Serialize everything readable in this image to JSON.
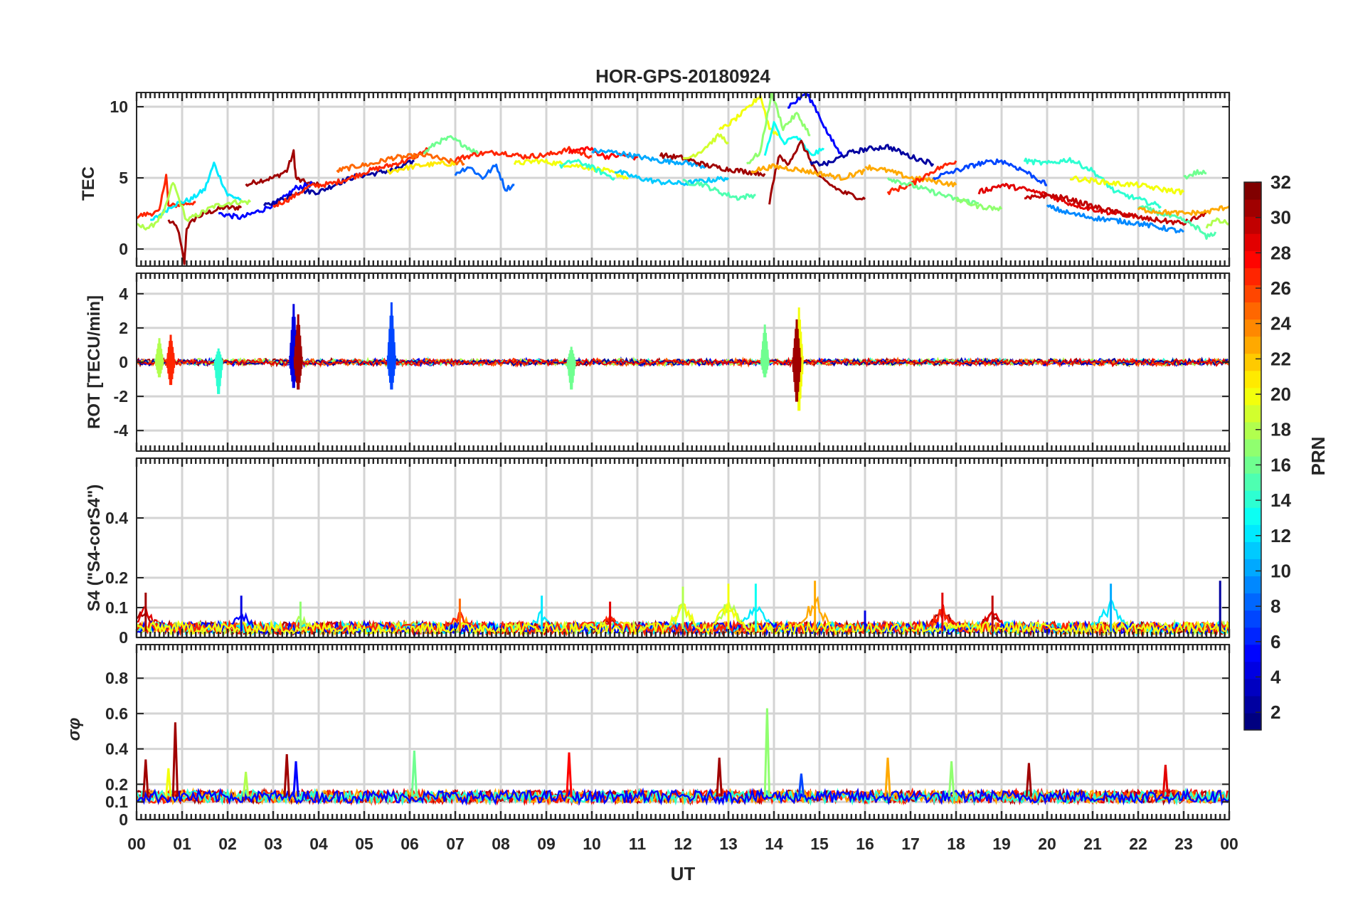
{
  "figure": {
    "title": "HOR-GPS-20180924",
    "xlabel": "UT",
    "xtick_labels": [
      "00",
      "01",
      "02",
      "03",
      "04",
      "05",
      "06",
      "07",
      "08",
      "09",
      "10",
      "11",
      "12",
      "13",
      "14",
      "15",
      "16",
      "17",
      "18",
      "19",
      "20",
      "21",
      "22",
      "23",
      "00"
    ],
    "colorbar": {
      "label": "PRN",
      "range": [
        1,
        32
      ],
      "tick_labels": [
        "2",
        "4",
        "6",
        "8",
        "10",
        "12",
        "14",
        "16",
        "18",
        "20",
        "22",
        "24",
        "26",
        "28",
        "30",
        "32"
      ],
      "colormap": "jet"
    }
  },
  "chart_data": [
    {
      "type": "line",
      "panel": "tec",
      "ylabel": "TEC",
      "ylim": [
        -1.2,
        11
      ],
      "yticks": [
        "0",
        "5",
        "10"
      ],
      "xlim": [
        0,
        24
      ],
      "grid": true,
      "series": [
        {
          "prn": 31,
          "x": [
            0.7,
            0.9,
            1.05,
            1.1,
            1.3,
            1.6,
            1.9,
            2.2,
            2.3
          ],
          "y": [
            2.0,
            1.5,
            -1.0,
            1.5,
            2.2,
            2.6,
            2.9,
            2.9,
            3.0
          ]
        },
        {
          "prn": 31,
          "x": [
            2.4,
            2.7,
            3.0,
            3.3,
            3.45,
            3.5,
            3.6,
            3.8,
            4.0
          ],
          "y": [
            4.5,
            4.8,
            5.0,
            5.5,
            6.8,
            5.0,
            4.8,
            4.6,
            4.5
          ]
        },
        {
          "prn": 27,
          "x": [
            0,
            0.3,
            0.5,
            0.65,
            0.7,
            0.9,
            1.3
          ],
          "y": [
            2.3,
            2.5,
            2.6,
            5.3,
            3.0,
            3.1,
            3.3
          ]
        },
        {
          "prn": 12,
          "x": [
            0.3,
            0.8,
            1.2,
            1.5,
            1.7,
            2.0,
            2.3
          ],
          "y": [
            1.9,
            3.1,
            3.5,
            4.2,
            6.0,
            3.8,
            3.5
          ]
        },
        {
          "prn": 18,
          "x": [
            0,
            0.3,
            0.6,
            0.8,
            1.1,
            1.4,
            1.7,
            2.1,
            2.5
          ],
          "y": [
            1.6,
            1.5,
            2.5,
            4.7,
            2.0,
            2.5,
            3.0,
            3.3,
            3.3
          ]
        },
        {
          "prn": 5,
          "x": [
            1.8,
            2.3,
            2.8,
            3.2,
            3.5,
            3.9
          ],
          "y": [
            2.5,
            2.2,
            2.8,
            3.5,
            4.3,
            4.6
          ]
        },
        {
          "prn": 2,
          "x": [
            2.8,
            3.2,
            3.6,
            4.0,
            4.4,
            4.8,
            5.2,
            5.7,
            6.1
          ],
          "y": [
            3.0,
            3.5,
            4.1,
            4.0,
            4.6,
            5.1,
            5.3,
            5.6,
            6.2
          ]
        },
        {
          "prn": 27,
          "x": [
            3.0,
            3.4,
            3.8,
            4.3,
            4.7,
            5.1,
            5.6,
            6.0,
            6.4
          ],
          "y": [
            3.0,
            3.6,
            4.4,
            4.6,
            5.0,
            5.5,
            5.9,
            6.3,
            7.0
          ]
        },
        {
          "prn": 25,
          "x": [
            4.4,
            4.8,
            5.2,
            5.6,
            6.0,
            6.4,
            6.8,
            7.2
          ],
          "y": [
            5.5,
            5.8,
            6.0,
            6.4,
            6.5,
            6.6,
            6.2,
            6.0
          ]
        },
        {
          "prn": 21,
          "x": [
            5.5,
            5.9,
            6.3,
            6.7,
            7.0
          ],
          "y": [
            5.4,
            5.7,
            5.9,
            6.0,
            6.0
          ]
        },
        {
          "prn": 16,
          "x": [
            6.3,
            6.6,
            6.9,
            7.2,
            7.5
          ],
          "y": [
            6.7,
            7.5,
            7.8,
            7.3,
            6.7
          ]
        },
        {
          "prn": 8,
          "x": [
            7.0,
            7.3,
            7.6,
            7.9,
            8.1,
            8.3
          ],
          "y": [
            5.3,
            5.8,
            5.0,
            5.9,
            4.2,
            4.5
          ]
        },
        {
          "prn": 27,
          "x": [
            7.0,
            7.5,
            8.0,
            8.5,
            9.0,
            9.5,
            10.0
          ],
          "y": [
            6.3,
            6.7,
            6.8,
            6.5,
            6.6,
            7.0,
            6.5
          ]
        },
        {
          "prn": 20,
          "x": [
            8.3,
            8.8,
            9.3,
            9.8,
            10.3,
            10.8
          ],
          "y": [
            6.0,
            6.2,
            6.0,
            5.8,
            5.5,
            5.0
          ]
        },
        {
          "prn": 14,
          "x": [
            9.3,
            9.6,
            9.9,
            10.2,
            10.5
          ],
          "y": [
            5.8,
            6.2,
            5.9,
            5.4,
            5.0
          ]
        },
        {
          "prn": 28,
          "x": [
            9.5,
            9.9,
            10.3,
            10.7,
            11.0
          ],
          "y": [
            6.8,
            7.1,
            6.5,
            6.6,
            6.4
          ]
        },
        {
          "prn": 10,
          "x": [
            10.0,
            10.5,
            11.0,
            11.5,
            12.0,
            12.5
          ],
          "y": [
            6.9,
            6.8,
            6.5,
            6.2,
            6.1,
            5.8
          ]
        },
        {
          "prn": 11,
          "x": [
            10.5,
            11.0,
            11.5,
            12.0,
            12.5,
            13.0
          ],
          "y": [
            5.5,
            5.0,
            4.7,
            4.6,
            4.8,
            5.0
          ]
        },
        {
          "prn": 15,
          "x": [
            12.0,
            12.4,
            12.8,
            13.2,
            13.6
          ],
          "y": [
            4.7,
            4.6,
            4.0,
            3.6,
            3.8
          ]
        },
        {
          "prn": 31,
          "x": [
            11.5,
            12.0,
            12.5,
            13.0,
            13.5,
            13.8
          ],
          "y": [
            6.6,
            6.4,
            5.9,
            5.6,
            5.4,
            5.3
          ]
        },
        {
          "prn": 19,
          "x": [
            12.0,
            12.4,
            12.8,
            13.0
          ],
          "y": [
            6.2,
            6.9,
            8.0,
            7.5
          ]
        },
        {
          "prn": 20,
          "x": [
            12.8,
            13.1,
            13.4,
            13.7,
            13.9,
            14.1
          ],
          "y": [
            8.3,
            9.0,
            9.8,
            10.8,
            8.5,
            8.0
          ]
        },
        {
          "prn": 17,
          "x": [
            13.4,
            13.7,
            13.95,
            14.2,
            14.5,
            14.8
          ],
          "y": [
            6.0,
            6.8,
            11.0,
            8.5,
            9.5,
            8.0
          ]
        },
        {
          "prn": 13,
          "x": [
            13.8,
            14.0,
            14.2,
            14.5,
            14.8,
            15.1
          ],
          "y": [
            6.5,
            8.8,
            7.5,
            7.9,
            6.6,
            7.0
          ]
        },
        {
          "prn": 31,
          "x": [
            13.9,
            14.1,
            14.3,
            14.6,
            15.0,
            15.5,
            16.0
          ],
          "y": [
            3.3,
            6.5,
            6.0,
            7.5,
            5.0,
            4.0,
            3.5
          ]
        },
        {
          "prn": 5,
          "x": [
            14.3,
            14.5,
            14.7,
            14.9,
            15.2,
            15.5
          ],
          "y": [
            10.0,
            10.4,
            11.0,
            10.0,
            8.0,
            6.5
          ]
        },
        {
          "prn": 23,
          "x": [
            13.5,
            14.0,
            14.5,
            15.0,
            15.5,
            16.0
          ],
          "y": [
            5.5,
            5.8,
            5.6,
            5.3,
            5.0,
            5.5
          ]
        },
        {
          "prn": 2,
          "x": [
            14.8,
            15.2,
            15.6,
            16.0,
            16.5,
            17.0,
            17.5
          ],
          "y": [
            6.0,
            6.0,
            6.7,
            7.0,
            7.2,
            6.5,
            6.0
          ]
        },
        {
          "prn": 23,
          "x": [
            16.0,
            16.5,
            17.0,
            17.5,
            18.0
          ],
          "y": [
            5.8,
            5.5,
            5.0,
            4.8,
            4.5
          ]
        },
        {
          "prn": 27,
          "x": [
            16.5,
            17.0,
            17.5,
            18.0
          ],
          "y": [
            4.0,
            4.5,
            5.5,
            6.2
          ]
        },
        {
          "prn": 16,
          "x": [
            16.5,
            17.0,
            17.5,
            18.0,
            18.5
          ],
          "y": [
            5.0,
            4.5,
            4.0,
            3.5,
            3.2
          ]
        },
        {
          "prn": 7,
          "x": [
            17.5,
            18.0,
            18.5,
            19.0,
            19.5,
            20.0
          ],
          "y": [
            5.0,
            5.5,
            6.0,
            6.2,
            5.5,
            4.5
          ]
        },
        {
          "prn": 17,
          "x": [
            18.0,
            18.5,
            19.0
          ],
          "y": [
            3.5,
            3.0,
            2.8
          ]
        },
        {
          "prn": 29,
          "x": [
            18.5,
            19.0,
            19.5,
            20.0,
            20.5,
            21.0,
            21.5,
            22.0
          ],
          "y": [
            4.0,
            4.5,
            4.2,
            3.8,
            3.2,
            2.8,
            2.5,
            2.3
          ]
        },
        {
          "prn": 14,
          "x": [
            19.5,
            20.0,
            20.5,
            21.0,
            21.5,
            22.0,
            22.5
          ],
          "y": [
            6.2,
            6.0,
            6.3,
            5.5,
            4.0,
            3.5,
            3.0
          ]
        },
        {
          "prn": 20,
          "x": [
            20.5,
            21.0,
            21.5,
            22.0,
            22.5,
            23.0
          ],
          "y": [
            5.0,
            4.8,
            4.6,
            4.5,
            4.2,
            4.0
          ]
        },
        {
          "prn": 9,
          "x": [
            20.0,
            20.5,
            21.0,
            21.5,
            22.0,
            22.5,
            23.0
          ],
          "y": [
            3.0,
            2.5,
            2.2,
            2.0,
            1.8,
            1.5,
            1.2
          ]
        },
        {
          "prn": 30,
          "x": [
            19.5,
            20.0,
            20.5,
            21.0,
            21.5,
            22.0,
            22.5,
            23.0,
            23.5
          ],
          "y": [
            3.5,
            3.8,
            3.5,
            3.0,
            2.6,
            2.2,
            2.0,
            1.8,
            2.5
          ]
        },
        {
          "prn": 15,
          "x": [
            22.0,
            22.5,
            23.0,
            23.3,
            23.5,
            23.7
          ],
          "y": [
            3.0,
            2.5,
            2.0,
            1.5,
            0.8,
            1.2
          ]
        },
        {
          "prn": 16,
          "x": [
            23.0,
            23.3,
            23.5
          ],
          "y": [
            5.0,
            5.4,
            5.3
          ]
        },
        {
          "prn": 23,
          "x": [
            22.0,
            22.5,
            23.0,
            23.5,
            24.0
          ],
          "y": [
            2.8,
            2.6,
            2.5,
            2.6,
            3.0
          ]
        },
        {
          "prn": 18,
          "x": [
            23.5,
            23.7,
            24.0
          ],
          "y": [
            1.6,
            2.0,
            1.8
          ]
        }
      ]
    },
    {
      "type": "line",
      "panel": "rot",
      "ylabel": "ROT [TECU/min]",
      "ylim": [
        -5.2,
        5.2
      ],
      "yticks": [
        "-4",
        "-2",
        "0",
        "2",
        "4"
      ],
      "xlim": [
        0,
        24
      ],
      "grid": true,
      "spikes": [
        {
          "prn": 27,
          "x": 0.75,
          "min": -1.5,
          "max": 1.6
        },
        {
          "prn": 18,
          "x": 0.5,
          "min": -1.0,
          "max": 1.4
        },
        {
          "prn": 14,
          "x": 1.8,
          "min": -2.1,
          "max": 0.8
        },
        {
          "prn": 4,
          "x": 3.45,
          "min": -1.7,
          "max": 3.4
        },
        {
          "prn": 31,
          "x": 3.55,
          "min": -1.8,
          "max": 2.8
        },
        {
          "prn": 7,
          "x": 5.6,
          "min": -1.8,
          "max": 3.5
        },
        {
          "prn": 16,
          "x": 9.55,
          "min": -1.8,
          "max": 0.9
        },
        {
          "prn": 16,
          "x": 13.8,
          "min": -1.0,
          "max": 2.2
        },
        {
          "prn": 20,
          "x": 14.55,
          "min": -3.2,
          "max": 3.2
        },
        {
          "prn": 31,
          "x": 14.5,
          "min": -2.6,
          "max": 2.5
        }
      ],
      "baseline_amplitude": 0.3
    },
    {
      "type": "line",
      "panel": "s4",
      "ylabel": "S4 (\"S4-corS4\")",
      "ylim": [
        0,
        0.6
      ],
      "yticks": [
        "0",
        "0.1",
        "0.2",
        "0.4"
      ],
      "xlim": [
        0,
        24
      ],
      "grid": true,
      "peaks": [
        {
          "prn": 31,
          "x": 0.2,
          "y": 0.15
        },
        {
          "prn": 4,
          "x": 2.3,
          "y": 0.14
        },
        {
          "prn": 17,
          "x": 3.6,
          "y": 0.12
        },
        {
          "prn": 25,
          "x": 7.1,
          "y": 0.13
        },
        {
          "prn": 12,
          "x": 8.9,
          "y": 0.14
        },
        {
          "prn": 29,
          "x": 10.4,
          "y": 0.12
        },
        {
          "prn": 18,
          "x": 12.0,
          "y": 0.17
        },
        {
          "prn": 20,
          "x": 13.0,
          "y": 0.18
        },
        {
          "prn": 13,
          "x": 13.6,
          "y": 0.18
        },
        {
          "prn": 23,
          "x": 14.9,
          "y": 0.19
        },
        {
          "prn": 4,
          "x": 16.0,
          "y": 0.09
        },
        {
          "prn": 29,
          "x": 17.7,
          "y": 0.15
        },
        {
          "prn": 30,
          "x": 18.8,
          "y": 0.14
        },
        {
          "prn": 10,
          "x": 21.4,
          "y": 0.18
        },
        {
          "prn": 2,
          "x": 23.8,
          "y": 0.19
        }
      ],
      "baseline": 0.03
    },
    {
      "type": "line",
      "panel": "sigma_phi",
      "ylabel": "σφ",
      "ylim": [
        0,
        0.99
      ],
      "yticks": [
        "0",
        "0.1",
        "0.2",
        "0.4",
        "0.6",
        "0.8"
      ],
      "xlim": [
        0,
        24
      ],
      "grid": true,
      "spikes": [
        {
          "prn": 31,
          "x": 0.2,
          "y": 0.34
        },
        {
          "prn": 31,
          "x": 0.85,
          "y": 0.55
        },
        {
          "prn": 20,
          "x": 0.7,
          "y": 0.29
        },
        {
          "prn": 18,
          "x": 2.4,
          "y": 0.27
        },
        {
          "prn": 31,
          "x": 3.3,
          "y": 0.37
        },
        {
          "prn": 5,
          "x": 3.5,
          "y": 0.33
        },
        {
          "prn": 16,
          "x": 6.1,
          "y": 0.39
        },
        {
          "prn": 28,
          "x": 9.5,
          "y": 0.38
        },
        {
          "prn": 31,
          "x": 12.8,
          "y": 0.35
        },
        {
          "prn": 17,
          "x": 13.85,
          "y": 0.63
        },
        {
          "prn": 7,
          "x": 14.6,
          "y": 0.26
        },
        {
          "prn": 23,
          "x": 16.5,
          "y": 0.35
        },
        {
          "prn": 17,
          "x": 17.9,
          "y": 0.33
        },
        {
          "prn": 31,
          "x": 19.6,
          "y": 0.32
        },
        {
          "prn": 29,
          "x": 22.6,
          "y": 0.31
        }
      ],
      "baseline": 0.13
    }
  ]
}
